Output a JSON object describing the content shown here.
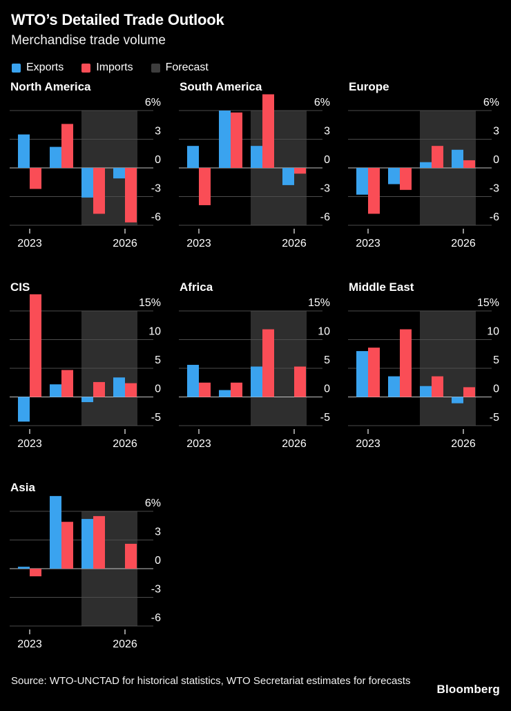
{
  "header": {
    "title": "WTO’s Detailed Trade Outlook",
    "subtitle": "Merchandise trade volume"
  },
  "legend": [
    {
      "label": "Exports",
      "color": "#3aa3ef"
    },
    {
      "label": "Imports",
      "color": "#fa4d56"
    },
    {
      "label": "Forecast",
      "color": "#3d3d3d"
    }
  ],
  "colors": {
    "background": "#000000",
    "exports": "#3aa3ef",
    "imports": "#fa4d56",
    "forecast_band": "#2e2e2e",
    "gridline": "#4d4d4d",
    "zero_line": "#c4c4c4",
    "text": "#ffffff"
  },
  "chart_data": [
    {
      "type": "bar",
      "title": "North America",
      "categories": [
        2023,
        2024,
        2025,
        2026
      ],
      "x_tick_labels": [
        "2023",
        "2026"
      ],
      "series": [
        {
          "name": "Exports",
          "values": [
            3.5,
            2.2,
            -3.1,
            -1.1
          ]
        },
        {
          "name": "Imports",
          "values": [
            -2.2,
            4.6,
            -4.8,
            -5.7
          ]
        }
      ],
      "forecast_years": [
        2025,
        2026
      ],
      "yticks": [
        6,
        3,
        0,
        -3,
        -6
      ],
      "ytick_labels": [
        "6%",
        "3",
        "0",
        "-3",
        "-6"
      ],
      "ylim": [
        -6,
        6
      ],
      "grid": true,
      "legend_position": "top-shared"
    },
    {
      "type": "bar",
      "title": "South America",
      "categories": [
        2023,
        2024,
        2025,
        2026
      ],
      "x_tick_labels": [
        "2023",
        "2026"
      ],
      "series": [
        {
          "name": "Exports",
          "values": [
            2.3,
            6.0,
            2.3,
            -1.8
          ]
        },
        {
          "name": "Imports",
          "values": [
            -3.9,
            5.8,
            7.7,
            -0.6
          ]
        }
      ],
      "forecast_years": [
        2025,
        2026
      ],
      "yticks": [
        6,
        3,
        0,
        -3,
        -6
      ],
      "ytick_labels": [
        "6%",
        "3",
        "0",
        "-3",
        "-6"
      ],
      "ylim": [
        -6,
        6
      ],
      "grid": true,
      "legend_position": "top-shared"
    },
    {
      "type": "bar",
      "title": "Europe",
      "categories": [
        2023,
        2024,
        2025,
        2026
      ],
      "x_tick_labels": [
        "2023",
        "2026"
      ],
      "series": [
        {
          "name": "Exports",
          "values": [
            -2.8,
            -1.7,
            0.6,
            1.9
          ]
        },
        {
          "name": "Imports",
          "values": [
            -4.8,
            -2.3,
            2.3,
            0.8
          ]
        }
      ],
      "forecast_years": [
        2025,
        2026
      ],
      "yticks": [
        6,
        3,
        0,
        -3,
        -6
      ],
      "ytick_labels": [
        "6%",
        "3",
        "0",
        "-3",
        "-6"
      ],
      "ylim": [
        -6,
        6
      ],
      "grid": true,
      "legend_position": "top-shared"
    },
    {
      "type": "bar",
      "title": "CIS",
      "categories": [
        2023,
        2024,
        2025,
        2026
      ],
      "x_tick_labels": [
        "2023",
        "2026"
      ],
      "series": [
        {
          "name": "Exports",
          "values": [
            -4.3,
            2.2,
            -0.9,
            3.4
          ]
        },
        {
          "name": "Imports",
          "values": [
            17.9,
            4.7,
            2.6,
            2.4
          ]
        }
      ],
      "forecast_years": [
        2025,
        2026
      ],
      "yticks": [
        15,
        10,
        5,
        0,
        -5
      ],
      "ytick_labels": [
        "15%",
        "10",
        "5",
        "0",
        "-5"
      ],
      "ylim": [
        -5,
        15
      ],
      "grid": true,
      "legend_position": "top-shared"
    },
    {
      "type": "bar",
      "title": "Africa",
      "categories": [
        2023,
        2024,
        2025,
        2026
      ],
      "x_tick_labels": [
        "2023",
        "2026"
      ],
      "series": [
        {
          "name": "Exports",
          "values": [
            5.6,
            1.2,
            5.3,
            0
          ]
        },
        {
          "name": "Imports",
          "values": [
            2.5,
            2.5,
            11.8,
            5.3
          ]
        }
      ],
      "forecast_years": [
        2025,
        2026
      ],
      "yticks": [
        15,
        10,
        5,
        0,
        -5
      ],
      "ytick_labels": [
        "15%",
        "10",
        "5",
        "0",
        "-5"
      ],
      "ylim": [
        -5,
        15
      ],
      "grid": true,
      "legend_position": "top-shared"
    },
    {
      "type": "bar",
      "title": "Middle East",
      "categories": [
        2023,
        2024,
        2025,
        2026
      ],
      "x_tick_labels": [
        "2023",
        "2026"
      ],
      "series": [
        {
          "name": "Exports",
          "values": [
            8.0,
            3.6,
            1.9,
            -1.1
          ]
        },
        {
          "name": "Imports",
          "values": [
            8.6,
            11.8,
            3.6,
            1.7
          ]
        }
      ],
      "forecast_years": [
        2025,
        2026
      ],
      "yticks": [
        15,
        10,
        5,
        0,
        -5
      ],
      "ytick_labels": [
        "15%",
        "10",
        "5",
        "0",
        "-5"
      ],
      "ylim": [
        -5,
        15
      ],
      "grid": true,
      "legend_position": "top-shared"
    },
    {
      "type": "bar",
      "title": "Asia",
      "categories": [
        2023,
        2024,
        2025,
        2026
      ],
      "x_tick_labels": [
        "2023",
        "2026"
      ],
      "series": [
        {
          "name": "Exports",
          "values": [
            0.2,
            7.6,
            5.2,
            0
          ]
        },
        {
          "name": "Imports",
          "values": [
            -0.8,
            4.9,
            5.5,
            2.6
          ]
        }
      ],
      "forecast_years": [
        2025,
        2026
      ],
      "yticks": [
        6,
        3,
        0,
        -3,
        -6
      ],
      "ytick_labels": [
        "6%",
        "3",
        "0",
        "-3",
        "-6"
      ],
      "ylim": [
        -6,
        6
      ],
      "grid": true,
      "legend_position": "top-shared"
    }
  ],
  "footer": {
    "source": "Source: WTO-UNCTAD for historical statistics, WTO Secretariat estimates for forecasts",
    "brand": "Bloomberg"
  }
}
